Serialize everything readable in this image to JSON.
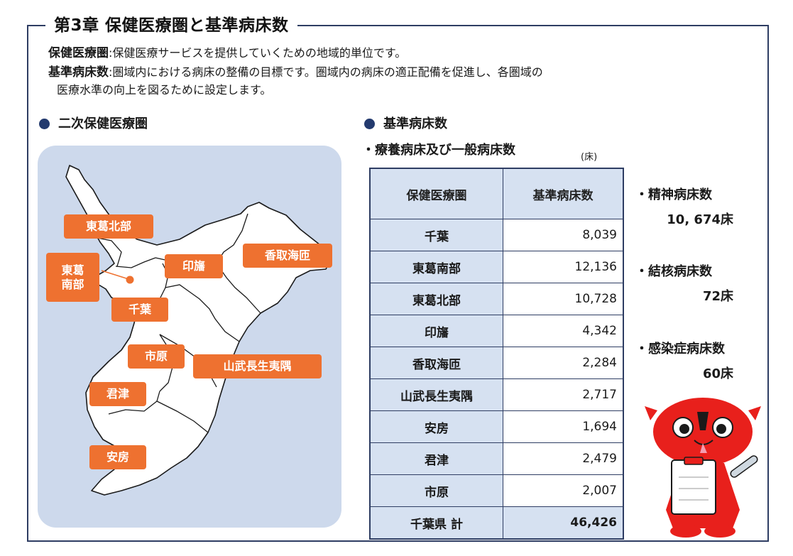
{
  "chapter_title": "第3章 保健医療圏と基準病床数",
  "definitions": [
    {
      "term": "保健医療圏",
      "text": ":保健医療サービスを提供していくための地域的単位です。"
    },
    {
      "term": "基準病床数",
      "text": ":圏域内における病床の整備の目標です。圏域内の病床の適正配備を促進し、各圏域の",
      "text2": "医療水準の向上を図るために設定します。"
    }
  ],
  "map_section_title": "二次保健医療圏",
  "beds_section_title": "基準病床数",
  "table_subtitle": "・療養病床及び一般病床数",
  "unit": "(床)",
  "regions": [
    "東葛北部",
    "東葛\n南部",
    "印旛",
    "香取海匝",
    "千葉",
    "市原",
    "山武長生夷隅",
    "君津",
    "安房"
  ],
  "table": {
    "headers": [
      "保健医療圏",
      "基準病床数"
    ],
    "rows": [
      {
        "name": "千葉",
        "value": "8,039"
      },
      {
        "name": "東葛南部",
        "value": "12,136"
      },
      {
        "name": "東葛北部",
        "value": "10,728"
      },
      {
        "name": "印旛",
        "value": "4,342"
      },
      {
        "name": "香取海匝",
        "value": "2,284"
      },
      {
        "name": "山武長生夷隅",
        "value": "2,717"
      },
      {
        "name": "安房",
        "value": "1,694"
      },
      {
        "name": "君津",
        "value": "2,479"
      },
      {
        "name": "市原",
        "value": "2,007"
      }
    ],
    "total": {
      "name": "千葉県 計",
      "value": "46,426"
    }
  },
  "side_stats": [
    {
      "label": "・精神病床数",
      "value": "10, 674床"
    },
    {
      "label": "・結核病床数",
      "value": "72床"
    },
    {
      "label": "・感染症病床数",
      "value": "60床"
    }
  ],
  "colors": {
    "accent": "#ee7130",
    "navy": "#2e3d63",
    "panel": "#cdd9ec",
    "header_fill": "#d6e1f1",
    "mascot": "#e8201c"
  }
}
